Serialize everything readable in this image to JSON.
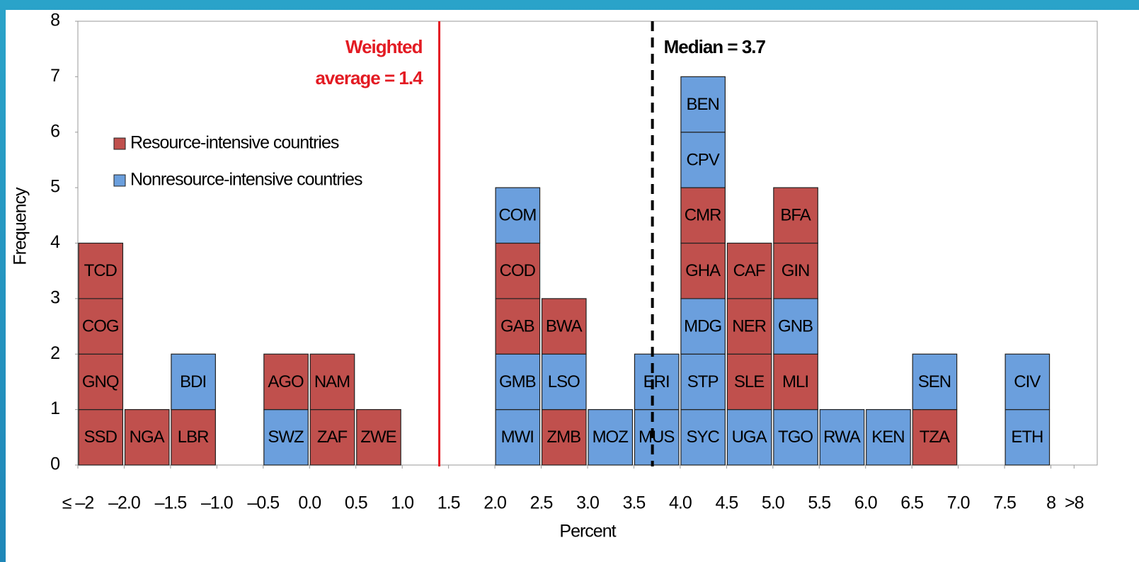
{
  "chart_data": {
    "type": "block-histogram",
    "xlabel": "Percent",
    "ylabel": "Frequency",
    "bins": [
      -2.5,
      -2,
      -1.5,
      -1,
      -0.5,
      0,
      0.5,
      1,
      1.5,
      2,
      2.5,
      3,
      3.5,
      4,
      4.5,
      5,
      5.5,
      6,
      6.5,
      7,
      7.5,
      8,
      8.5
    ],
    "series": [
      {
        "name": "Resource-intensive countries",
        "color": "#c0504d"
      },
      {
        "name": "Nonresource-intensive countries",
        "color": "#6b9fdd"
      }
    ],
    "columns": [
      [
        {
          "label": "SSD",
          "resource": true
        },
        {
          "label": "GNQ",
          "resource": true
        },
        {
          "label": "COG",
          "resource": true
        },
        {
          "label": "TCD",
          "resource": true
        }
      ],
      [
        {
          "label": "NGA",
          "resource": true
        }
      ],
      [
        {
          "label": "LBR",
          "resource": true
        },
        {
          "label": "BDI",
          "resource": false
        }
      ],
      [],
      [
        {
          "label": "SWZ",
          "resource": false
        },
        {
          "label": "AGO",
          "resource": true
        }
      ],
      [
        {
          "label": "ZAF",
          "resource": true
        },
        {
          "label": "NAM",
          "resource": true
        }
      ],
      [
        {
          "label": "ZWE",
          "resource": true
        }
      ],
      [],
      [],
      [
        {
          "label": "MWI",
          "resource": false
        },
        {
          "label": "GMB",
          "resource": false
        },
        {
          "label": "GAB",
          "resource": true
        },
        {
          "label": "COD",
          "resource": true
        },
        {
          "label": "COM",
          "resource": false
        }
      ],
      [
        {
          "label": "ZMB",
          "resource": true
        },
        {
          "label": "LSO",
          "resource": false
        },
        {
          "label": "BWA",
          "resource": true
        }
      ],
      [
        {
          "label": "MOZ",
          "resource": false
        }
      ],
      [
        {
          "label": "MUS",
          "resource": false
        },
        {
          "label": "ERI",
          "resource": false
        }
      ],
      [
        {
          "label": "SYC",
          "resource": false
        },
        {
          "label": "STP",
          "resource": false
        },
        {
          "label": "MDG",
          "resource": false
        },
        {
          "label": "GHA",
          "resource": true
        },
        {
          "label": "CMR",
          "resource": true
        },
        {
          "label": "CPV",
          "resource": false
        },
        {
          "label": "BEN",
          "resource": false
        }
      ],
      [
        {
          "label": "UGA",
          "resource": false
        },
        {
          "label": "SLE",
          "resource": true
        },
        {
          "label": "NER",
          "resource": true
        },
        {
          "label": "CAF",
          "resource": true
        }
      ],
      [
        {
          "label": "TGO",
          "resource": false
        },
        {
          "label": "MLI",
          "resource": true
        },
        {
          "label": "GNB",
          "resource": false
        },
        {
          "label": "GIN",
          "resource": true
        },
        {
          "label": "BFA",
          "resource": true
        }
      ],
      [
        {
          "label": "RWA",
          "resource": false
        }
      ],
      [
        {
          "label": "KEN",
          "resource": false
        }
      ],
      [
        {
          "label": "TZA",
          "resource": true
        },
        {
          "label": "SEN",
          "resource": false
        }
      ],
      [],
      [
        {
          "label": "ETH",
          "resource": false
        },
        {
          "label": "CIV",
          "resource": false
        }
      ],
      []
    ],
    "reference_lines": [
      {
        "value": 1.4,
        "label": [
          "Weighted",
          "average = 1.4"
        ],
        "color": "#e31b23",
        "dashed": false
      },
      {
        "value": 3.7,
        "label": [
          "Median = 3.7"
        ],
        "color": "#000000",
        "dashed": true
      }
    ],
    "xlim": [
      -2.5,
      8.5
    ],
    "xticks": [
      {
        "value": -2.5,
        "label": "≤ –2"
      },
      {
        "value": -2,
        "label": "–2.0"
      },
      {
        "value": -1.5,
        "label": "–1.5"
      },
      {
        "value": -1,
        "label": "–1.0"
      },
      {
        "value": -0.5,
        "label": "–0.5"
      },
      {
        "value": 0,
        "label": "0.0"
      },
      0.5,
      {
        "value": 1,
        "label": "1.0"
      },
      1.5,
      {
        "value": 2,
        "label": "2.0"
      },
      2.5,
      {
        "value": 3,
        "label": "3.0"
      },
      3.5,
      {
        "value": 4,
        "label": "4.0"
      },
      4.5,
      {
        "value": 5,
        "label": "5.0"
      },
      5.5,
      {
        "value": 6,
        "label": "6.0"
      },
      6.5,
      {
        "value": 7,
        "label": "7.0"
      },
      7.5,
      8,
      {
        "value": 8.25,
        "label": ">8"
      }
    ],
    "ylim": [
      0,
      8
    ],
    "yticks": [
      0,
      1,
      2,
      3,
      4,
      5,
      6,
      7,
      8
    ]
  }
}
